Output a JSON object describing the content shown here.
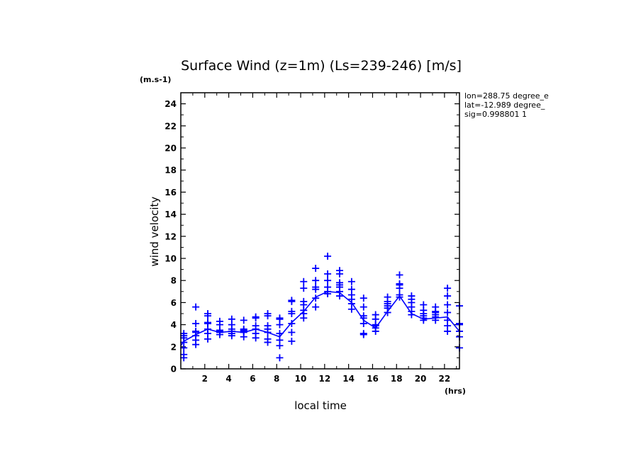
{
  "chart_data": {
    "type": "scatter",
    "title": "Surface Wind (z=1m) (Ls=239-246) [m/s]",
    "y_unit": "(m.s-1)",
    "x_unit": "(hrs)",
    "xlabel": "local time",
    "ylabel": "wind velocity",
    "xlim": [
      0,
      23.25
    ],
    "ylim": [
      0,
      25
    ],
    "x_ticks": [
      2,
      4,
      6,
      8,
      10,
      12,
      14,
      16,
      18,
      20,
      22
    ],
    "y_ticks": [
      0,
      2,
      4,
      6,
      8,
      10,
      12,
      14,
      16,
      18,
      20,
      22,
      24
    ],
    "info_lines": [
      "lon=288.75 degree_e",
      "lat=-12.989 degree_",
      "sig=0.998801 1"
    ],
    "color": "#0000ff",
    "line": {
      "x": [
        0,
        0.25,
        1.25,
        2.25,
        3.25,
        4.25,
        5.25,
        6.25,
        7.25,
        8.25,
        9.25,
        10.25,
        11.25,
        12.25,
        13.25,
        14.25,
        15.25,
        16.25,
        17.25,
        18.25,
        19.25,
        20.25,
        21.25,
        22.25,
        23.25
      ],
      "y": [
        2.1,
        2.5,
        3.1,
        3.6,
        3.3,
        3.4,
        3.3,
        3.6,
        3.3,
        2.9,
        4.2,
        5.2,
        6.5,
        7.0,
        6.9,
        6.0,
        4.4,
        3.7,
        5.2,
        6.6,
        5.0,
        4.5,
        4.6,
        4.7,
        3.4
      ]
    },
    "points": [
      {
        "x": 0.25,
        "y": [
          1.0,
          1.3,
          1.9,
          2.4,
          2.8,
          3.0,
          3.2
        ]
      },
      {
        "x": 1.25,
        "y": [
          2.2,
          2.6,
          3.0,
          3.3,
          3.4,
          4.1,
          5.6
        ]
      },
      {
        "x": 2.25,
        "y": [
          2.7,
          3.2,
          3.6,
          4.1,
          4.2,
          4.8,
          5.0
        ]
      },
      {
        "x": 3.25,
        "y": [
          3.1,
          3.3,
          3.4,
          3.5,
          4.0,
          4.3
        ]
      },
      {
        "x": 4.25,
        "y": [
          3.0,
          3.2,
          3.4,
          3.6,
          4.0,
          4.5
        ]
      },
      {
        "x": 5.25,
        "y": [
          2.9,
          3.3,
          3.4,
          3.5,
          3.6,
          4.4
        ]
      },
      {
        "x": 6.25,
        "y": [
          2.8,
          3.2,
          3.6,
          3.9,
          4.6,
          4.7
        ]
      },
      {
        "x": 7.25,
        "y": [
          2.4,
          2.7,
          3.3,
          3.6,
          3.9,
          4.8,
          5.0
        ]
      },
      {
        "x": 8.25,
        "y": [
          1.0,
          2.1,
          2.6,
          3.2,
          4.0,
          4.5,
          4.6
        ]
      },
      {
        "x": 9.25,
        "y": [
          2.5,
          3.3,
          4.1,
          5.0,
          5.2,
          6.1,
          6.2
        ]
      },
      {
        "x": 10.25,
        "y": [
          4.6,
          5.0,
          5.3,
          5.8,
          6.1,
          7.3,
          7.9
        ]
      },
      {
        "x": 11.25,
        "y": [
          5.6,
          6.4,
          7.2,
          7.4,
          8.0,
          9.1
        ]
      },
      {
        "x": 12.25,
        "y": [
          6.8,
          7.0,
          7.4,
          8.0,
          8.6,
          10.2
        ]
      },
      {
        "x": 13.25,
        "y": [
          6.6,
          7.0,
          7.4,
          7.6,
          7.8,
          8.6,
          8.9
        ]
      },
      {
        "x": 14.25,
        "y": [
          5.4,
          5.9,
          6.3,
          6.7,
          7.2,
          7.9
        ]
      },
      {
        "x": 15.25,
        "y": [
          3.1,
          3.2,
          4.1,
          4.6,
          4.8,
          5.6,
          6.4
        ]
      },
      {
        "x": 16.25,
        "y": [
          3.4,
          3.7,
          3.9,
          4.0,
          4.5,
          4.9
        ]
      },
      {
        "x": 17.25,
        "y": [
          5.1,
          5.5,
          5.7,
          5.9,
          6.1,
          6.5
        ]
      },
      {
        "x": 18.25,
        "y": [
          6.5,
          6.7,
          7.3,
          7.6,
          7.7,
          8.5
        ]
      },
      {
        "x": 19.25,
        "y": [
          4.9,
          5.2,
          5.6,
          6.0,
          6.3,
          6.6
        ]
      },
      {
        "x": 20.25,
        "y": [
          4.4,
          4.6,
          4.8,
          5.0,
          5.3,
          5.8
        ]
      },
      {
        "x": 21.25,
        "y": [
          4.4,
          4.7,
          4.9,
          5.1,
          5.2,
          5.6
        ]
      },
      {
        "x": 22.25,
        "y": [
          3.4,
          3.9,
          4.4,
          5.1,
          5.8,
          6.6,
          7.3
        ]
      },
      {
        "x": 23.25,
        "y": [
          1.9,
          2.9,
          3.4,
          4.0,
          4.1,
          5.7
        ]
      }
    ]
  }
}
